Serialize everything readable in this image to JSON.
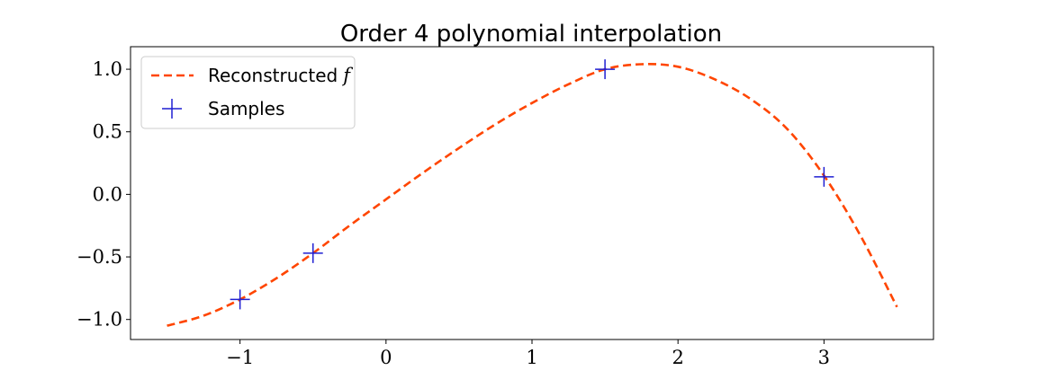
{
  "chart_data": {
    "type": "line",
    "title": "Order 4 polynomial interpolation",
    "xlabel": "",
    "ylabel": "",
    "xlim": [
      -1.75,
      3.75
    ],
    "ylim": [
      -1.16,
      1.18
    ],
    "xticks": [
      -1,
      0,
      1,
      2,
      3
    ],
    "xtick_labels": [
      "−1",
      "0",
      "1",
      "2",
      "3"
    ],
    "yticks": [
      -1.0,
      -0.5,
      0.0,
      0.5,
      1.0
    ],
    "ytick_labels": [
      "−1.0",
      "−0.5",
      "0.0",
      "0.5",
      "1.0"
    ],
    "grid": false,
    "legend_position": "upper-left",
    "series": [
      {
        "name": "Reconstructed",
        "name_math": "f",
        "style": "dashed",
        "color": "#ff4500",
        "x": [
          -1.5,
          -1.25,
          -1.0,
          -0.75,
          -0.5,
          -0.25,
          0.0,
          0.25,
          0.5,
          0.75,
          1.0,
          1.25,
          1.5,
          1.75,
          2.0,
          2.25,
          2.5,
          2.75,
          3.0,
          3.25,
          3.5
        ],
        "y": [
          -1.05,
          -0.97,
          -0.84,
          -0.67,
          -0.47,
          -0.25,
          -0.04,
          0.17,
          0.37,
          0.56,
          0.73,
          0.88,
          1.0,
          1.04,
          1.02,
          0.92,
          0.76,
          0.52,
          0.15,
          -0.33,
          -0.9
        ]
      },
      {
        "name": "Samples",
        "style": "marker-plus",
        "color": "#1f1fd2",
        "x": [
          -1.0,
          -0.5,
          1.5,
          3.0
        ],
        "y": [
          -0.84,
          -0.47,
          1.0,
          0.14
        ]
      }
    ]
  }
}
